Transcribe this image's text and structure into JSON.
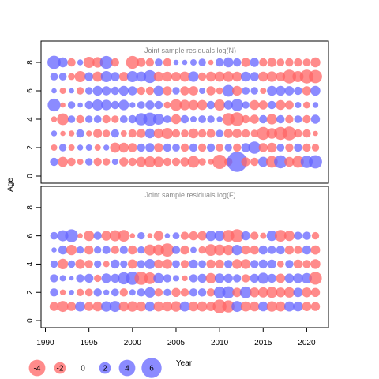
{
  "chart_data": {
    "type": "bubble",
    "ylabel": "Age",
    "xlabel": "Year",
    "xlim": [
      1989.5,
      2022.5
    ],
    "xticks": [
      1990,
      1995,
      2000,
      2005,
      2010,
      2015,
      2020
    ],
    "ylim": [
      -0.5,
      9.5
    ],
    "yticks": [
      0,
      2,
      4,
      6,
      8
    ],
    "color_positive": "#6464ff",
    "color_negative": "#ff6464",
    "years": [
      1991,
      1992,
      1993,
      1994,
      1995,
      1996,
      1997,
      1998,
      1999,
      2000,
      2001,
      2002,
      2003,
      2004,
      2005,
      2006,
      2007,
      2008,
      2009,
      2010,
      2011,
      2012,
      2013,
      2014,
      2015,
      2016,
      2017,
      2018,
      2019,
      2020,
      2021
    ],
    "ages": [
      1,
      2,
      3,
      4,
      5,
      6,
      7,
      8
    ],
    "legend": {
      "values": [
        -4,
        -2,
        0,
        2,
        4,
        6
      ],
      "labels": [
        "-4",
        "-2",
        "0",
        "2",
        "4",
        "6"
      ]
    },
    "panels": [
      {
        "title": "Joint sample residuals log(N)",
        "rows": [
          [
            1.0,
            -1.5,
            -1.0,
            -0.6,
            0.8,
            -1.0,
            -0.8,
            0.6,
            -1.2,
            -1.0,
            -1.5,
            -1.8,
            -1.6,
            -1.0,
            -1.0,
            -1.2,
            -2.0,
            -0.8,
            -0.5,
            -3.0,
            -1.0,
            6.0,
            -1.2,
            -1.0,
            1.5,
            -2.0,
            2.5,
            -1.4,
            -2.0,
            2.2,
            2.6
          ],
          [
            -0.6,
            0.8,
            -0.6,
            0.5,
            0.6,
            -0.6,
            0.5,
            -1.5,
            -1.4,
            -1.2,
            1.0,
            1.2,
            -1.2,
            1.0,
            0.9,
            -1.0,
            1.0,
            -1.0,
            1.0,
            -0.9,
            0.8,
            -1.0,
            1.2,
            2.2,
            -1.2,
            -1.4,
            0.9,
            -1.0,
            1.0,
            -1.0,
            -0.8
          ],
          [
            0.5,
            -0.4,
            -0.5,
            1.0,
            -0.5,
            -1.2,
            -0.8,
            1.0,
            -0.6,
            -1.0,
            -1.2,
            1.4,
            -1.4,
            -1.8,
            -1.0,
            -0.9,
            -1.4,
            -1.0,
            -1.1,
            0.8,
            -1.2,
            -1.3,
            -1.0,
            -0.8,
            -2.5,
            -1.7,
            -2.5,
            -2.8,
            -1.0,
            -1.0,
            -0.4
          ],
          [
            -0.5,
            -2.0,
            0.8,
            -1.0,
            0.8,
            0.9,
            -1.0,
            -0.8,
            0.9,
            1.0,
            2.2,
            2.6,
            1.8,
            0.9,
            -1.4,
            1.0,
            0.6,
            0.9,
            0.8,
            0.5,
            -2.2,
            -2.8,
            -1.0,
            -1.2,
            1.0,
            -1.6,
            1.0,
            -1.0,
            0.9,
            -1.0,
            1.2
          ],
          [
            2.4,
            -0.4,
            0.8,
            0.4,
            1.0,
            1.8,
            1.6,
            1.0,
            1.6,
            0.5,
            0.9,
            1.2,
            1.0,
            -0.7,
            -2.0,
            -1.6,
            -1.5,
            -1.5,
            1.0,
            -1.8,
            1.2,
            2.2,
            0.8,
            -1.4,
            -1.2,
            1.0,
            -1.4,
            -1.1,
            0.6,
            -0.7,
            0.5
          ],
          [
            0.4,
            -0.6,
            0.4,
            -0.8,
            0.8,
            1.4,
            1.2,
            1.0,
            1.4,
            1.2,
            -1.0,
            -1.0,
            1.5,
            -1.2,
            0.8,
            -1.2,
            -1.3,
            0.6,
            -1.2,
            -0.7,
            2.0,
            -1.4,
            0.9,
            0.8,
            -0.6,
            1.4,
            1.4,
            1.3,
            1.0,
            -1.2,
            1.4
          ],
          [
            0.9,
            0.9,
            -0.7,
            -1.8,
            1.1,
            -1.5,
            1.8,
            1.2,
            -1.3,
            1.8,
            1.5,
            2.4,
            -1.4,
            -1.4,
            -1.3,
            -1.5,
            1.6,
            -1.0,
            -1.4,
            -1.5,
            -1.6,
            -1.4,
            1.4,
            1.2,
            -1.4,
            -1.6,
            -1.3,
            -2.8,
            -1.8,
            -2.8,
            -2.6
          ],
          [
            2.6,
            1.4,
            -1.0,
            0.5,
            -1.8,
            -1.6,
            2.4,
            -1.0,
            0.0,
            -2.4,
            -1.2,
            -1.0,
            0.9,
            -1.0,
            0.4,
            0.4,
            0.6,
            0.8,
            -0.4,
            1.0,
            1.4,
            1.0,
            -1.2,
            1.2,
            -1.0,
            -1.2,
            -0.9,
            -1.0,
            -1.0,
            -0.9,
            -1.4
          ]
        ]
      },
      {
        "title": "Joint sample residuals log(F)",
        "rows": [
          [
            -1.2,
            -1.8,
            -1.2,
            1.5,
            -1.2,
            -1.4,
            1.6,
            1.8,
            -1.4,
            -1.6,
            -1.4,
            1.4,
            -1.5,
            -1.4,
            -1.6,
            1.5,
            -1.4,
            -1.5,
            -1.3,
            -2.8,
            -2.2,
            1.8,
            -1.5,
            -1.4,
            1.4,
            -1.6,
            -1.5,
            1.5,
            1.4,
            -1.3,
            -1.2
          ],
          [
            1.0,
            -0.5,
            0.4,
            -0.8,
            -0.9,
            1.0,
            0.5,
            0.9,
            -1.0,
            0.6,
            1.0,
            1.6,
            -1.0,
            0.8,
            -1.2,
            -1.0,
            1.0,
            1.0,
            -1.0,
            2.0,
            2.2,
            -1.3,
            2.0,
            -1.4,
            -1.5,
            -1.8,
            -1.4,
            -1.6,
            1.3,
            -1.4,
            -1.2
          ],
          [
            1.0,
            0.6,
            0.3,
            1.0,
            1.2,
            -0.8,
            1.4,
            1.2,
            2.2,
            2.6,
            -2.6,
            -2.0,
            1.6,
            1.0,
            0.6,
            -0.5,
            1.0,
            1.2,
            -1.6,
            1.4,
            1.2,
            1.0,
            -1.0,
            1.2,
            1.8,
            1.2,
            -1.3,
            1.3,
            1.4,
            1.6,
            -2.4
          ],
          [
            0.8,
            -1.6,
            0.8,
            -1.4,
            -1.0,
            0.8,
            -0.6,
            1.2,
            0.8,
            -1.3,
            1.0,
            1.5,
            -1.2,
            -1.4,
            0.9,
            -1.0,
            1.2,
            0.9,
            -1.2,
            -1.2,
            1.0,
            -1.4,
            -1.4,
            1.0,
            1.2,
            1.2,
            -0.7,
            1.0,
            -1.2,
            -1.0,
            -1.4
          ],
          [
            0.4,
            1.2,
            -1.6,
            0.8,
            -1.2,
            0.8,
            1.0,
            -1.0,
            1.0,
            -1.2,
            0.8,
            -1.8,
            -1.8,
            -2.6,
            1.0,
            -1.2,
            0.6,
            -0.8,
            -2.0,
            -1.8,
            -1.6,
            1.6,
            -1.2,
            -1.2,
            1.2,
            1.0,
            1.1,
            -1.2,
            -1.0,
            1.2,
            -1.3
          ],
          [
            0.9,
            1.8,
            2.5,
            -0.4,
            -1.6,
            1.0,
            -1.4,
            -1.8,
            -2.0,
            -0.4,
            0.8,
            -0.4,
            -1.4,
            0.4,
            0.7,
            -1.0,
            -1.2,
            -1.3,
            1.6,
            1.6,
            -2.0,
            -2.6,
            1.2,
            -1.0,
            -0.6,
            1.6,
            -2.0,
            -1.6,
            1.0,
            1.0,
            -0.8
          ],
          [
            0,
            0,
            0,
            0,
            0,
            0,
            0,
            0,
            0,
            0,
            0,
            0,
            0,
            0,
            0,
            0,
            0,
            0,
            0,
            0,
            0,
            0,
            0,
            0,
            0,
            0,
            0,
            0,
            0,
            0,
            0
          ],
          [
            0,
            0,
            0,
            0,
            0,
            0,
            0,
            0,
            0,
            0,
            0,
            0,
            0,
            0,
            0,
            0,
            0,
            0,
            0,
            0,
            0,
            0,
            0,
            0,
            0,
            0,
            0,
            0,
            0,
            0,
            0
          ]
        ]
      }
    ]
  }
}
